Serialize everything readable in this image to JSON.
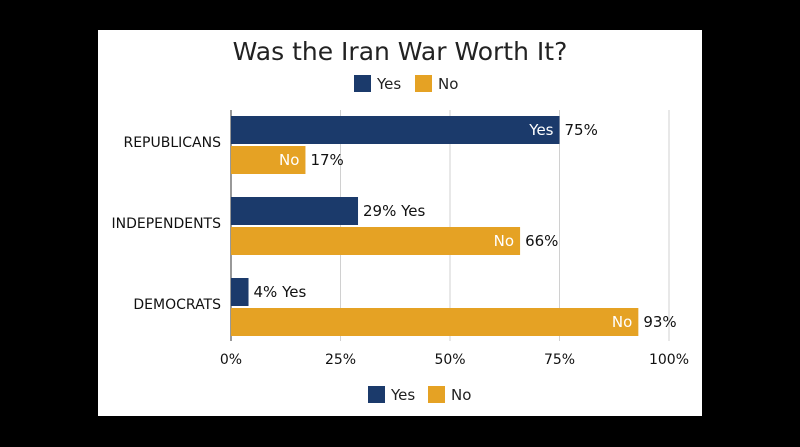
{
  "chart_data": {
    "type": "bar",
    "orientation": "horizontal",
    "title": "Was the Iran War Worth It?",
    "categories": [
      "REPUBLICANS",
      "INDEPENDENTS",
      "DEMOCRATS"
    ],
    "series": [
      {
        "name": "Yes",
        "color": "#1b3a6b",
        "values": [
          75,
          29,
          4
        ],
        "labels": [
          "75%",
          "29% Yes",
          "4% Yes"
        ],
        "inside_labels": [
          "Yes",
          "",
          ""
        ]
      },
      {
        "name": "No",
        "color": "#e5a224",
        "values": [
          17,
          66,
          93
        ],
        "labels": [
          "17%",
          "66%",
          "93%"
        ],
        "inside_labels": [
          "No",
          "No",
          "No"
        ]
      }
    ],
    "xlim": [
      0,
      100
    ],
    "xticks": [
      0,
      25,
      50,
      75,
      100
    ],
    "xtick_labels": [
      "0%",
      "25%",
      "50%",
      "75%",
      "100%"
    ],
    "grid": "vertical",
    "legend": [
      "top",
      "bottom"
    ]
  }
}
